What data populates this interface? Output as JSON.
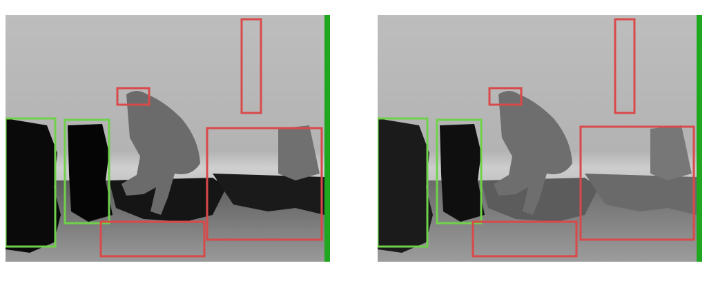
{
  "figure": {
    "panels": [
      {
        "id": "left",
        "variant": "raw-depth",
        "boxes": [
          {
            "color": "green",
            "hex": "#6fd24a"
          },
          {
            "color": "green",
            "hex": "#6fd24a"
          },
          {
            "color": "red",
            "hex": "#d9494a"
          },
          {
            "color": "red",
            "hex": "#d9494a"
          },
          {
            "color": "red",
            "hex": "#d9494a"
          },
          {
            "color": "red",
            "hex": "#d9494a"
          }
        ]
      },
      {
        "id": "right",
        "variant": "filled-depth",
        "boxes": [
          {
            "color": "green",
            "hex": "#6fd24a"
          },
          {
            "color": "green",
            "hex": "#6fd24a"
          },
          {
            "color": "red",
            "hex": "#d9494a"
          },
          {
            "color": "red",
            "hex": "#d9494a"
          },
          {
            "color": "red",
            "hex": "#d9494a"
          },
          {
            "color": "red",
            "hex": "#d9494a"
          }
        ]
      }
    ],
    "colors": {
      "edge_bar": "#1fa81f",
      "background": "#ffffff"
    }
  }
}
